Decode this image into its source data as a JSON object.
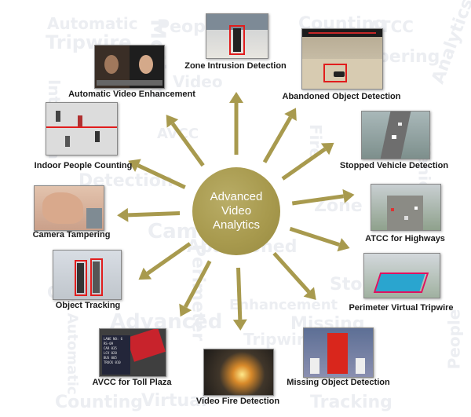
{
  "hub": {
    "lines": [
      "Advanced",
      "Video",
      "Analytics"
    ]
  },
  "colors": {
    "accent": "#a89a4e",
    "background_text": "#eceef2",
    "highlight": "#e11d1d"
  },
  "features": [
    {
      "id": "zone-intrusion-detection",
      "label": "Zone Intrusion Detection"
    },
    {
      "id": "abandoned-object-detection",
      "label": "Abandoned Object Detection"
    },
    {
      "id": "stopped-vehicle-detection",
      "label": "Stopped Vehicle Detection"
    },
    {
      "id": "atcc-for-highways",
      "label": "ATCC  for Highways"
    },
    {
      "id": "perimeter-virtual-tripwire",
      "label": "Perimeter Virtual Tripwire"
    },
    {
      "id": "missing-object-detection",
      "label": "Missing Object Detection"
    },
    {
      "id": "video-fire-detection",
      "label": "Video Fire Detection"
    },
    {
      "id": "avcc-for-toll-plaza",
      "label": "AVCC for Toll Plaza"
    },
    {
      "id": "object-tracking",
      "label": "Object Tracking"
    },
    {
      "id": "camera-tampering",
      "label": "Camera Tampering"
    },
    {
      "id": "indoor-people-counting",
      "label": "Indoor People Counting"
    },
    {
      "id": "automatic-video-enhancement",
      "label": "Automatic Video Enhancement"
    }
  ],
  "thumb_text": {
    "toll_board": [
      "LANE NO: 6",
      "RS-09",
      "CAR 035",
      "LCV 020",
      "BUS 005",
      "TRUCK 010"
    ]
  },
  "background_words": [
    "Automatic",
    "People",
    "Counting",
    "ATCC",
    "Tripwire",
    "Motion",
    "Video",
    "Tampering",
    "Analytics",
    "Intrusion",
    "Detection",
    "AVCC",
    "Fire",
    "Camera",
    "Object",
    "Perimeter",
    "Abandoned",
    "Enhancement",
    "Zone",
    "Advanced",
    "Missing",
    "Stopped",
    "Vehicle",
    "Virtual",
    "Tracking"
  ]
}
